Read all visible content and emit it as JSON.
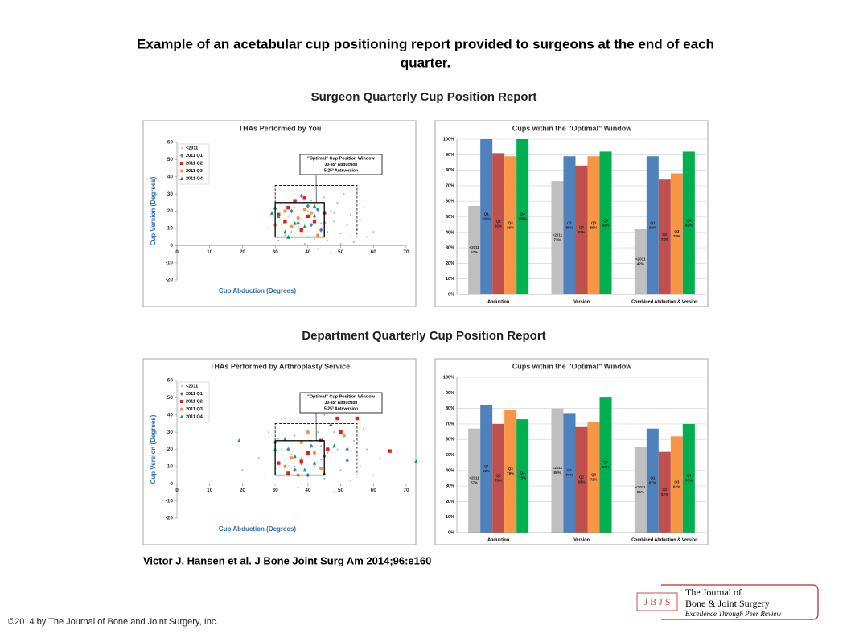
{
  "page": {
    "title": "Example of an acetabular cup positioning report provided to surgeons at the end of each",
    "title2": "quarter.",
    "citation": "Victor J. Hansen et al. J Bone Joint Surg Am 2014;96:e160",
    "copyright": "©2014 by The Journal of Bone and Joint Surgery, Inc."
  },
  "sections": [
    "Surgeon Quarterly Cup Position Report",
    "Department Quarterly Cup Position Report"
  ],
  "logo": {
    "mark": "J B J S",
    "line1": "The Journal of",
    "line2": "Bone & Joint Surgery",
    "line3": "Excellence Through Peer Review"
  },
  "chart_data": [
    {
      "type": "scatter",
      "title": "THAs Performed by You",
      "xlabel": "Cup Abduction (Degrees)",
      "ylabel": "Cup Version (Degrees)",
      "xlim": [
        0,
        70
      ],
      "xticks": [
        0,
        10,
        20,
        30,
        40,
        50,
        60,
        70
      ],
      "ylim": [
        -20,
        60
      ],
      "yticks": [
        -20,
        -10,
        0,
        10,
        20,
        30,
        40,
        50,
        60
      ],
      "legend": "top-left",
      "annotation": [
        "\"Optimal\" Cup Position Window",
        "30-45° Abduction",
        "5-25° Anteversion"
      ],
      "windows": [
        {
          "xlim": [
            30,
            45
          ],
          "ylim": [
            5,
            25
          ],
          "style": "solid"
        },
        {
          "xlim": [
            30,
            55
          ],
          "ylim": [
            5,
            35
          ],
          "style": "dashed"
        }
      ],
      "series": [
        {
          "name": "<2011",
          "color": "#b0b0b0",
          "marker": "dot",
          "x": [
            32,
            35,
            38,
            40,
            42,
            44,
            46,
            48,
            50,
            52,
            54,
            36,
            41,
            47,
            49,
            53,
            55,
            58,
            31,
            39,
            43,
            45,
            51,
            56,
            34,
            37,
            44,
            46,
            48,
            50,
            33,
            42,
            57,
            60,
            28,
            47,
            40,
            53,
            35,
            45
          ],
          "y": [
            12,
            8,
            15,
            5,
            18,
            10,
            3,
            14,
            7,
            12,
            2,
            22,
            26,
            20,
            25,
            18,
            9,
            5,
            3,
            1,
            -2,
            28,
            30,
            15,
            17,
            11,
            13,
            8,
            19,
            1,
            6,
            4,
            22,
            8,
            10,
            -4,
            20,
            5,
            25,
            16
          ]
        },
        {
          "name": "2011 Q1",
          "color": "#4a7ebb",
          "marker": "diamond",
          "x": [
            38,
            40,
            42,
            37,
            44,
            35,
            41,
            43
          ],
          "y": [
            29,
            23,
            17,
            13,
            9,
            20,
            12,
            21
          ]
        },
        {
          "name": "2011 Q2",
          "color": "#e0201b",
          "marker": "square",
          "x": [
            36,
            31,
            33,
            40,
            45,
            38,
            42,
            34,
            39
          ],
          "y": [
            26,
            18,
            14,
            17,
            19,
            9,
            14,
            22,
            28
          ]
        },
        {
          "name": "2011 Q3",
          "color": "#f79646",
          "marker": "circle",
          "x": [
            33,
            37,
            41,
            30,
            43,
            35,
            39,
            45
          ],
          "y": [
            20,
            16,
            19,
            12,
            6,
            11,
            21,
            13
          ]
        },
        {
          "name": "2011 Q4",
          "color": "#00a651",
          "marker": "triangle",
          "x": [
            31,
            33,
            36,
            39,
            30,
            42,
            34,
            29
          ],
          "y": [
            17,
            8,
            13,
            11,
            22,
            23,
            5,
            19
          ]
        }
      ]
    },
    {
      "type": "bar",
      "title": "Cups within the \"Optimal\" Window",
      "categories": [
        "Abduction",
        "Version",
        "Combined Abduction & Version"
      ],
      "ylim": [
        0,
        100
      ],
      "yticks": [
        {
          "value": 0,
          "label": "0%"
        },
        {
          "value": 10,
          "label": "10%"
        },
        {
          "value": 20,
          "label": "20%"
        },
        {
          "value": 30,
          "label": "30%"
        },
        {
          "value": 40,
          "label": "40%"
        },
        {
          "value": 50,
          "label": "50%"
        },
        {
          "value": 60,
          "label": "60%"
        },
        {
          "value": 70,
          "label": "70%"
        },
        {
          "value": 80,
          "label": "80%"
        },
        {
          "value": 90,
          "label": "90%"
        },
        {
          "value": 100,
          "label": "100%"
        }
      ],
      "grid": true,
      "series": [
        {
          "name": "<2011",
          "color": "#bfbfbf",
          "values": [
            57,
            73,
            42
          ],
          "value_labels": [
            "57%",
            "73%",
            "42%"
          ]
        },
        {
          "name": "Q1",
          "color": "#4f81bd",
          "values": [
            100,
            89,
            89
          ],
          "value_labels": [
            "100%",
            "89%",
            "89%"
          ]
        },
        {
          "name": "Q2",
          "color": "#c0504d",
          "values": [
            91,
            83,
            74
          ],
          "value_labels": [
            "91%",
            "83%",
            "74%"
          ]
        },
        {
          "name": "Q3",
          "color": "#f79646",
          "values": [
            89,
            89,
            78
          ],
          "value_labels": [
            "89%",
            "89%",
            "78%"
          ]
        },
        {
          "name": "Q4",
          "color": "#00b050",
          "values": [
            100,
            92,
            92
          ],
          "value_labels": [
            "100%",
            "92%",
            "92%"
          ]
        }
      ]
    },
    {
      "type": "scatter",
      "title": "THAs Performed by Arthroplasty Service",
      "xlabel": "Cup Abduction (Degrees)",
      "ylabel": "Cup Version (Degrees)",
      "xlim": [
        0,
        70
      ],
      "xticks": [
        0,
        10,
        20,
        30,
        40,
        50,
        60,
        70
      ],
      "ylim": [
        -20,
        60
      ],
      "yticks": [
        -20,
        -10,
        0,
        10,
        20,
        30,
        40,
        50,
        60
      ],
      "legend": "top-left",
      "annotation": [
        "\"Optimal\" Cup Position Window",
        "30-45° Abduction",
        "5-25° Anteversion"
      ],
      "windows": [
        {
          "xlim": [
            30,
            45
          ],
          "ylim": [
            5,
            25
          ],
          "style": "solid"
        },
        {
          "xlim": [
            30,
            55
          ],
          "ylim": [
            5,
            35
          ],
          "style": "dashed"
        }
      ],
      "series": [
        {
          "name": "<2011",
          "color": "#b0b0b0",
          "marker": "dot",
          "x": [
            20,
            25,
            28,
            30,
            32,
            34,
            36,
            38,
            40,
            42,
            44,
            46,
            48,
            50,
            52,
            54,
            56,
            58,
            60,
            62,
            33,
            37,
            41,
            45,
            47,
            49,
            51,
            53,
            35,
            39,
            43,
            55,
            31,
            27,
            57,
            45,
            40,
            48,
            36,
            44
          ],
          "y": [
            8,
            15,
            30,
            12,
            20,
            5,
            28,
            15,
            35,
            10,
            22,
            18,
            30,
            8,
            14,
            25,
            10,
            20,
            5,
            15,
            38,
            -2,
            25,
            3,
            12,
            20,
            28,
            2,
            17,
            8,
            30,
            18,
            26,
            5,
            32,
            40,
            0,
            -5,
            10,
            14
          ]
        },
        {
          "name": "2011 Q1",
          "color": "#4a7ebb",
          "marker": "diamond",
          "x": [
            43,
            34,
            38,
            41,
            36,
            45,
            30,
            47,
            40,
            52
          ],
          "y": [
            44,
            20,
            12,
            22,
            8,
            16,
            24,
            34,
            5,
            20
          ]
        },
        {
          "name": "2011 Q2",
          "color": "#e0201b",
          "marker": "square",
          "x": [
            49,
            55,
            65,
            34,
            40,
            44,
            50,
            38,
            31,
            46
          ],
          "y": [
            38,
            38,
            19,
            6,
            18,
            25,
            30,
            13,
            12,
            20
          ]
        },
        {
          "name": "2011 Q3",
          "color": "#f79646",
          "marker": "circle",
          "x": [
            46,
            48,
            35,
            42,
            38,
            33,
            44,
            51,
            40,
            37
          ],
          "y": [
            47,
            44,
            15,
            18,
            24,
            10,
            9,
            28,
            30,
            5
          ]
        },
        {
          "name": "2011 Q4",
          "color": "#00a651",
          "marker": "triangle",
          "x": [
            73,
            19,
            30,
            36,
            42,
            45,
            33,
            39,
            48,
            52
          ],
          "y": [
            13,
            25,
            20,
            16,
            12,
            6,
            26,
            8,
            22,
            14
          ]
        }
      ]
    },
    {
      "type": "bar",
      "title": "Cups within the \"Optimal\" Window",
      "categories": [
        "Abduction",
        "Version",
        "Combined Abduction & Version"
      ],
      "ylim": [
        0,
        100
      ],
      "yticks": [
        {
          "value": 0,
          "label": "0%"
        },
        {
          "value": 10,
          "label": "10%"
        },
        {
          "value": 20,
          "label": "20%"
        },
        {
          "value": 30,
          "label": "30%"
        },
        {
          "value": 40,
          "label": "40%"
        },
        {
          "value": 50,
          "label": "50%"
        },
        {
          "value": 60,
          "label": "60%"
        },
        {
          "value": 70,
          "label": "70%"
        },
        {
          "value": 80,
          "label": "80%"
        },
        {
          "value": 90,
          "label": "90%"
        },
        {
          "value": 100,
          "label": "100%"
        }
      ],
      "grid": true,
      "series": [
        {
          "name": "<2011",
          "color": "#bfbfbf",
          "values": [
            67,
            80,
            55
          ],
          "value_labels": [
            "67%",
            "80%",
            "55%"
          ]
        },
        {
          "name": "Q1",
          "color": "#4f81bd",
          "values": [
            82,
            77,
            67
          ],
          "value_labels": [
            "82%",
            "77%",
            "67%"
          ]
        },
        {
          "name": "Q2",
          "color": "#c0504d",
          "values": [
            70,
            68,
            52
          ],
          "value_labels": [
            "70%",
            "68%",
            "52%"
          ]
        },
        {
          "name": "Q3",
          "color": "#f79646",
          "values": [
            79,
            71,
            62
          ],
          "value_labels": [
            "79%",
            "71%",
            "62%"
          ]
        },
        {
          "name": "Q4",
          "color": "#00b050",
          "values": [
            73,
            87,
            70
          ],
          "value_labels": [
            "73%",
            "87%",
            "70%"
          ]
        }
      ]
    }
  ]
}
